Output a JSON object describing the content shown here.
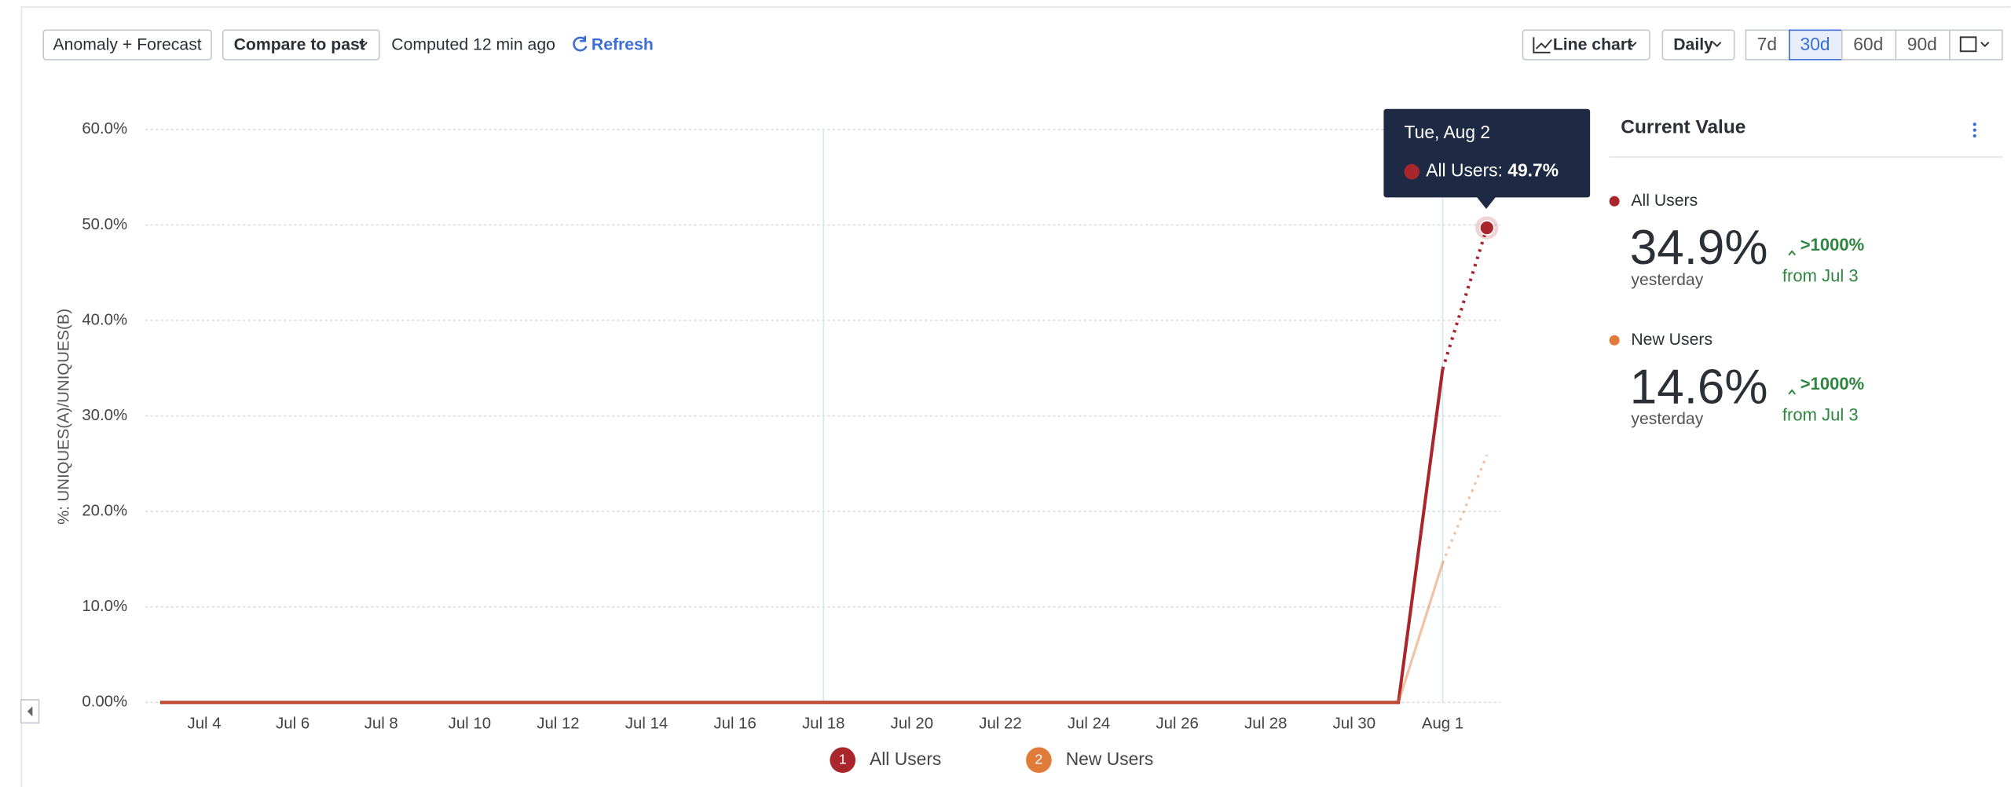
{
  "toolbar": {
    "anomaly": "Anomaly + Forecast",
    "compare": "Compare to past",
    "computed": "Computed 12 min ago",
    "refresh": "Refresh",
    "chart_type": "Line chart",
    "interval": "Daily",
    "ranges": [
      "7d",
      "30d",
      "60d",
      "90d"
    ]
  },
  "chart_data": {
    "type": "line",
    "y_label": "%: UNIQUES(A)/UNIQUES(B)",
    "categories": [
      null,
      "Jul 4",
      null,
      "Jul 6",
      null,
      "Jul 8",
      null,
      "Jul 10",
      null,
      "Jul 12",
      null,
      "Jul 14",
      null,
      "Jul 16",
      null,
      "Jul 18",
      null,
      "Jul 20",
      null,
      "Jul 22",
      null,
      "Jul 24",
      null,
      "Jul 26",
      null,
      "Jul 28",
      null,
      "Jul 30",
      null,
      "Aug 1",
      null
    ],
    "series": [
      {
        "name": "All Users",
        "legend_number": "1",
        "color": "#a8262c",
        "values": [
          0,
          0,
          0,
          0,
          0,
          0,
          0,
          0,
          0,
          0,
          0,
          0,
          0,
          0,
          0,
          0,
          0,
          0,
          0,
          0,
          0,
          0,
          0,
          0,
          0,
          0,
          0,
          0,
          0,
          34.9,
          49.7
        ]
      },
      {
        "name": "New Users",
        "legend_number": "2",
        "color": "#e07b39",
        "values": [
          0,
          0,
          0,
          0,
          0,
          0,
          0,
          0,
          0,
          0,
          0,
          0,
          0,
          0,
          0,
          0,
          0,
          0,
          0,
          0,
          0,
          0,
          0,
          0,
          0,
          0,
          0,
          0,
          0,
          14.6,
          25.9
        ]
      }
    ],
    "ylim": [
      0,
      60
    ],
    "yticks": [
      {
        "value": 0,
        "label": "0.00%"
      },
      {
        "value": 10,
        "label": "10.0%"
      },
      {
        "value": 20,
        "label": "20.0%"
      },
      {
        "value": 30,
        "label": "30.0%"
      },
      {
        "value": 40,
        "label": "40.0%"
      },
      {
        "value": 50,
        "label": "50.0%"
      },
      {
        "value": 60,
        "label": "60.0%"
      }
    ],
    "grid": true,
    "tooltip": {
      "date": "Tue, Aug 2",
      "label": "All Users:",
      "value": "49.7%"
    }
  },
  "current_value": {
    "title": "Current Value",
    "items": [
      {
        "name": "All Users",
        "value": "34.9%",
        "period": "yesterday",
        "change": ">1000%",
        "since": "from Jul 3"
      },
      {
        "name": "New Users",
        "value": "14.6%",
        "period": "yesterday",
        "change": ">1000%",
        "since": "from Jul 3"
      }
    ]
  }
}
